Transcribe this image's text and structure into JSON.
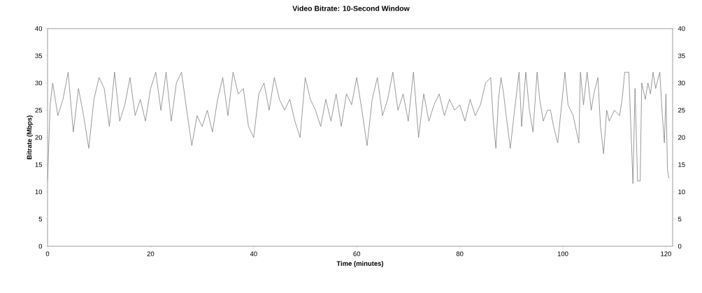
{
  "chart_data": {
    "type": "line",
    "title": "Video Bitrate: 10-Second Window",
    "xlabel": "Time (minutes)",
    "ylabel": "Bitrate (Mbps)",
    "xlim": [
      0,
      121.3
    ],
    "xticks": [
      0,
      20,
      40,
      60,
      80,
      100,
      120
    ],
    "ylim": [
      0,
      40
    ],
    "yticks": [
      0,
      5,
      10,
      15,
      20,
      25,
      30,
      35,
      40
    ],
    "y2lim": [
      0,
      40
    ],
    "y2ticks": [
      0,
      5,
      10,
      15,
      20,
      25,
      30,
      35,
      40
    ],
    "grid": false,
    "marker": "none",
    "line_style": "solid",
    "series": [
      {
        "color": "#808080",
        "x": [
          0,
          0.5,
          1,
          2,
          3,
          4,
          5,
          6,
          7,
          8,
          9,
          10,
          11,
          12,
          13,
          14,
          15,
          16,
          17,
          18,
          19,
          20,
          21,
          22,
          23,
          24,
          25,
          26,
          27,
          28,
          29,
          30,
          31,
          32,
          33,
          34,
          35,
          36,
          37,
          38,
          39,
          40,
          41,
          42,
          43,
          44,
          45,
          46,
          47,
          48,
          49,
          50,
          51,
          52,
          53,
          54,
          55,
          56,
          57,
          58,
          59,
          60,
          61,
          62,
          63,
          64,
          65,
          66,
          67,
          68,
          69,
          70,
          71,
          72,
          73,
          74,
          75,
          76,
          77,
          78,
          79,
          80,
          81,
          82,
          83,
          84,
          85,
          86,
          86.5,
          87,
          87.5,
          88,
          88.5,
          89,
          89.8,
          90.5,
          91.5,
          92,
          92.8,
          93.5,
          94.2,
          95,
          95.5,
          96.2,
          97,
          97.6,
          98.2,
          99,
          100.4,
          101,
          102,
          103.1,
          103.4,
          104,
          104.7,
          105.5,
          106,
          106.8,
          107.3,
          107.9,
          108.5,
          109,
          110,
          111,
          111.5,
          112,
          112.8,
          113.6,
          114,
          114.5,
          115,
          115.3,
          116,
          116.5,
          117,
          117.5,
          118,
          118.8,
          119.3,
          119.7,
          120,
          120.3,
          120.6
        ],
        "values": [
          12,
          26,
          30,
          24,
          27,
          32,
          21,
          29,
          24,
          18,
          27,
          31,
          29,
          22,
          32,
          23,
          26,
          31,
          24,
          27,
          23,
          29,
          32,
          25,
          32,
          23,
          30,
          32,
          25,
          18.5,
          24,
          22,
          25,
          21,
          27,
          31,
          24,
          32,
          28,
          29,
          22,
          20,
          28,
          30,
          25,
          31,
          27,
          25,
          27,
          23,
          20,
          31,
          27,
          25,
          22,
          27,
          23,
          28,
          22,
          28,
          26,
          31,
          25,
          18.5,
          27,
          31,
          24,
          27,
          32,
          25,
          28,
          23,
          32,
          20,
          28,
          23,
          26,
          28,
          24,
          27,
          25,
          26,
          23,
          27,
          24,
          26,
          30,
          31,
          23,
          18,
          27,
          31,
          28,
          24,
          18,
          24,
          32,
          22,
          32,
          25,
          21,
          32,
          27,
          23,
          25,
          25,
          22,
          19,
          32,
          26,
          24,
          19,
          32,
          26,
          32,
          25,
          28,
          31,
          22,
          17,
          25,
          23,
          25,
          24,
          27,
          32,
          32,
          11.5,
          29,
          12,
          12,
          30,
          27,
          30,
          28,
          32,
          29,
          32,
          24,
          19,
          28,
          14,
          12.5
        ]
      }
    ]
  }
}
